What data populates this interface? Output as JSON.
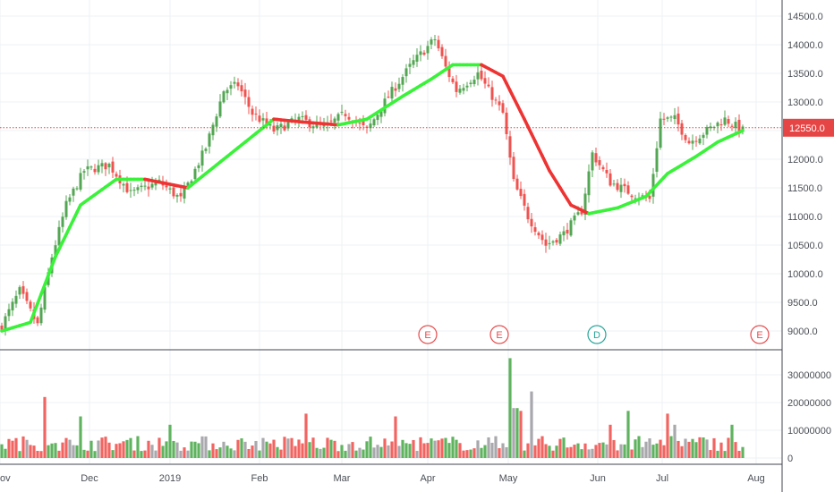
{
  "chart_data": [
    {
      "type": "candlestick",
      "ylim": [
        8800,
        14800
      ],
      "y_ticks": [
        "9000.0",
        "9500.0",
        "10000.0",
        "10500.0",
        "11000.0",
        "11500.0",
        "12000.0",
        "12500.0",
        "13000.0",
        "13500.0",
        "14000.0",
        "14500.0"
      ],
      "x_ticks": [
        "ov",
        "Dec",
        "2019",
        "Feb",
        "Mar",
        "Apr",
        "May",
        "Jun",
        "Jul",
        "Aug"
      ],
      "last_price_label": "12550.0",
      "last_price": 12550,
      "colors": {
        "up": "#53a653",
        "down": "#ef5350",
        "ma_up": "#39f239",
        "ma_down": "#ee3333",
        "price_line": "#e64545",
        "grid": "#eef0f3"
      },
      "events": [
        {
          "label": "E",
          "color": "#e54d4d",
          "date": "Apr 1"
        },
        {
          "label": "E",
          "color": "#e54d4d",
          "date": "Apr 28"
        },
        {
          "label": "D",
          "color": "#26a69a",
          "date": "May 30"
        },
        {
          "label": "E",
          "color": "#e54d4d",
          "date": "Jul 31"
        }
      ],
      "close_anchors": [
        {
          "i": 0,
          "v": 9100
        },
        {
          "i": 5,
          "v": 9700
        },
        {
          "i": 10,
          "v": 9100
        },
        {
          "i": 14,
          "v": 10300
        },
        {
          "i": 18,
          "v": 11200
        },
        {
          "i": 23,
          "v": 11800
        },
        {
          "i": 30,
          "v": 11900
        },
        {
          "i": 36,
          "v": 11400
        },
        {
          "i": 44,
          "v": 11600
        },
        {
          "i": 50,
          "v": 11300
        },
        {
          "i": 57,
          "v": 12200
        },
        {
          "i": 62,
          "v": 13200
        },
        {
          "i": 66,
          "v": 13300
        },
        {
          "i": 70,
          "v": 12800
        },
        {
          "i": 76,
          "v": 12500
        },
        {
          "i": 83,
          "v": 12700
        },
        {
          "i": 90,
          "v": 12550
        },
        {
          "i": 96,
          "v": 12800
        },
        {
          "i": 102,
          "v": 12500
        },
        {
          "i": 108,
          "v": 13100
        },
        {
          "i": 115,
          "v": 13700
        },
        {
          "i": 121,
          "v": 14100
        },
        {
          "i": 124,
          "v": 13600
        },
        {
          "i": 127,
          "v": 13200
        },
        {
          "i": 133,
          "v": 13500
        },
        {
          "i": 140,
          "v": 12800
        },
        {
          "i": 143,
          "v": 11600
        },
        {
          "i": 147,
          "v": 11000
        },
        {
          "i": 152,
          "v": 10500
        },
        {
          "i": 157,
          "v": 10700
        },
        {
          "i": 162,
          "v": 11100
        },
        {
          "i": 165,
          "v": 12100
        },
        {
          "i": 170,
          "v": 11600
        },
        {
          "i": 176,
          "v": 11400
        },
        {
          "i": 181,
          "v": 11300
        },
        {
          "i": 184,
          "v": 12700
        },
        {
          "i": 188,
          "v": 12700
        },
        {
          "i": 192,
          "v": 12300
        },
        {
          "i": 197,
          "v": 12500
        },
        {
          "i": 202,
          "v": 12700
        },
        {
          "i": 207,
          "v": 12500
        }
      ],
      "ma_anchors": [
        {
          "i": 0,
          "v": 9000
        },
        {
          "i": 8,
          "v": 9150
        },
        {
          "i": 15,
          "v": 10300
        },
        {
          "i": 22,
          "v": 11200
        },
        {
          "i": 32,
          "v": 11650
        },
        {
          "i": 40,
          "v": 11650
        },
        {
          "i": 52,
          "v": 11500
        },
        {
          "i": 60,
          "v": 11900
        },
        {
          "i": 70,
          "v": 12400
        },
        {
          "i": 76,
          "v": 12700
        },
        {
          "i": 84,
          "v": 12650
        },
        {
          "i": 94,
          "v": 12600
        },
        {
          "i": 102,
          "v": 12700
        },
        {
          "i": 112,
          "v": 13100
        },
        {
          "i": 120,
          "v": 13400
        },
        {
          "i": 126,
          "v": 13650
        },
        {
          "i": 134,
          "v": 13650
        },
        {
          "i": 140,
          "v": 13450
        },
        {
          "i": 146,
          "v": 12700
        },
        {
          "i": 153,
          "v": 11800
        },
        {
          "i": 159,
          "v": 11200
        },
        {
          "i": 164,
          "v": 11050
        },
        {
          "i": 172,
          "v": 11150
        },
        {
          "i": 180,
          "v": 11350
        },
        {
          "i": 186,
          "v": 11750
        },
        {
          "i": 194,
          "v": 12050
        },
        {
          "i": 200,
          "v": 12300
        },
        {
          "i": 207,
          "v": 12500
        }
      ]
    },
    {
      "type": "bar",
      "ylim": [
        0,
        37000000
      ],
      "y_ticks": [
        "0",
        "10000000",
        "20000000",
        "30000000"
      ],
      "spikes": [
        {
          "i": 12,
          "v": 22000000
        },
        {
          "i": 22,
          "v": 15000000
        },
        {
          "i": 47,
          "v": 12000000
        },
        {
          "i": 85,
          "v": 16000000
        },
        {
          "i": 110,
          "v": 15000000
        },
        {
          "i": 142,
          "v": 36000000
        },
        {
          "i": 143,
          "v": 18000000
        },
        {
          "i": 144,
          "v": 18000000
        },
        {
          "i": 145,
          "v": 17000000
        },
        {
          "i": 148,
          "v": 24000000
        },
        {
          "i": 170,
          "v": 12000000
        },
        {
          "i": 175,
          "v": 17000000
        },
        {
          "i": 186,
          "v": 16000000
        },
        {
          "i": 188,
          "v": 12000000
        },
        {
          "i": 204,
          "v": 12000000
        }
      ]
    }
  ]
}
